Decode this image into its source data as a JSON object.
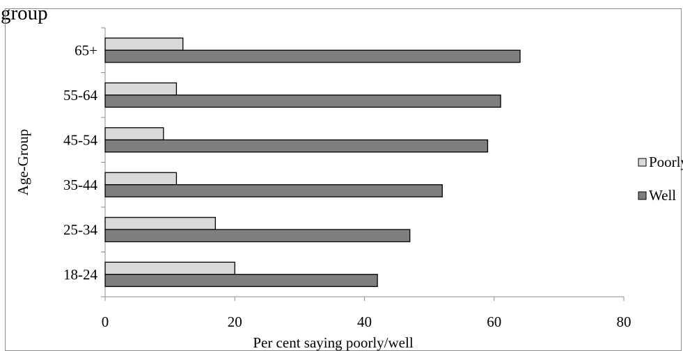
{
  "page": {
    "header_fragment": "group"
  },
  "chart_data": {
    "type": "bar",
    "orientation": "horizontal",
    "title": "",
    "xlabel": "Per cent saying poorly/well",
    "ylabel": "Age-Group",
    "categories": [
      "18-24",
      "25-34",
      "35-44",
      "45-54",
      "55-64",
      "65+"
    ],
    "series": [
      {
        "name": "Poorly",
        "values": [
          20,
          17,
          11,
          9,
          11,
          12
        ],
        "color": "#d9d9d9"
      },
      {
        "name": "Well",
        "values": [
          42,
          47,
          52,
          59,
          61,
          64
        ],
        "color": "#7f7f7f"
      }
    ],
    "xlim": [
      0,
      80
    ],
    "xticks": [
      0,
      20,
      40,
      60,
      80
    ],
    "grid": false,
    "legend_position": "right"
  }
}
